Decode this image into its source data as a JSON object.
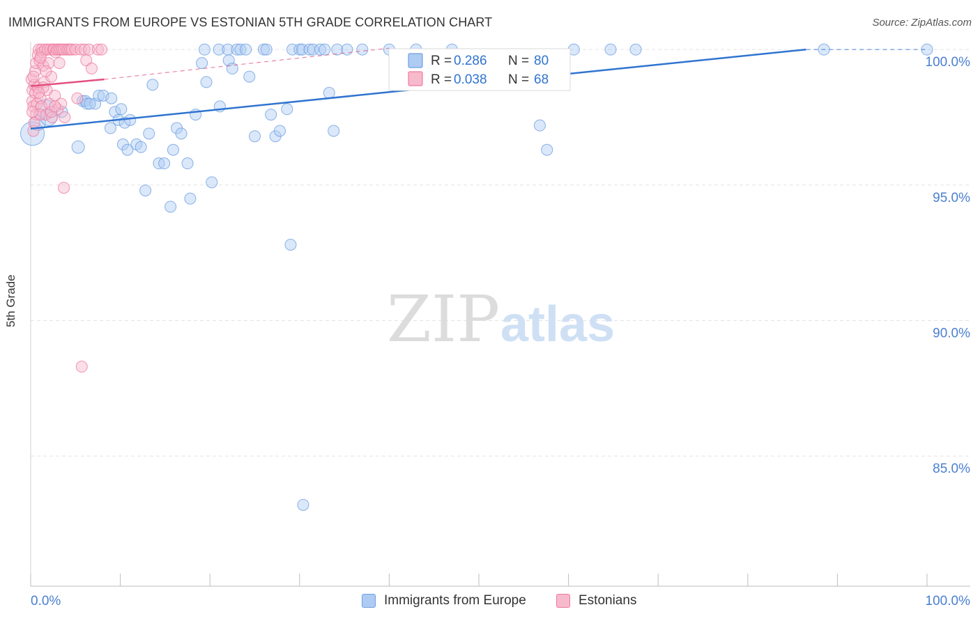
{
  "header": {
    "title": "IMMIGRANTS FROM EUROPE VS ESTONIAN 5TH GRADE CORRELATION CHART",
    "source": "Source: ZipAtlas.com"
  },
  "watermark": {
    "zip": "ZIP",
    "atlas": "atlas"
  },
  "legend_box": {
    "rows": [
      {
        "r_label": "R = ",
        "r_value": "0.286",
        "n_label": "N = ",
        "n_value": "80"
      },
      {
        "r_label": "R = ",
        "r_value": "0.038",
        "n_label": "N = ",
        "n_value": "68"
      }
    ]
  },
  "colors": {
    "blue": "#6f9fe0",
    "blue_fill": "#aecbf3",
    "blue_line": "#2f74d0",
    "pink": "#ee7aa0",
    "pink_fill": "#f7b9cc",
    "pink_line": "#e24f7e",
    "axis_text": "#4a7fd1",
    "grid": "#e3e3e3"
  },
  "chart_data": {
    "type": "scatter",
    "title": "IMMIGRANTS FROM EUROPE VS ESTONIAN 5TH GRADE CORRELATION CHART",
    "xlabel": "",
    "ylabel": "5th Grade",
    "xlim": [
      0,
      100
    ],
    "ylim": [
      80.2,
      100.8
    ],
    "x_tick_labels": [
      "0.0%",
      "100.0%"
    ],
    "y_ticks": [
      85.0,
      90.0,
      95.0,
      100.0
    ],
    "y_tick_labels": [
      "85.0%",
      "90.0%",
      "95.0%",
      "100.0%"
    ],
    "legend": "bottom",
    "grid": true,
    "series": [
      {
        "name": "Immigrants from Europe",
        "color": "#6f9fe0",
        "R": 0.286,
        "N": 80,
        "trend": {
          "x": [
            0,
            86.5
          ],
          "y": [
            97.08,
            100.0
          ],
          "dashed_x": [
            86.5,
            100
          ],
          "dashed_y": [
            100.0,
            100.0
          ]
        },
        "points": [
          [
            0.2,
            96.9,
            34
          ],
          [
            0.8,
            97.3,
            22
          ],
          [
            1.6,
            97.8,
            28
          ],
          [
            2.0,
            97.5,
            24
          ],
          [
            3.5,
            97.7,
            16
          ],
          [
            5.3,
            96.4,
            18
          ],
          [
            5.8,
            98.1,
            16
          ],
          [
            6.1,
            98.1,
            16
          ],
          [
            6.3,
            98.0,
            16
          ],
          [
            7.2,
            98.0,
            16
          ],
          [
            6.6,
            98.0,
            16
          ],
          [
            7.6,
            98.3,
            16
          ],
          [
            8.1,
            98.3,
            16
          ],
          [
            9.0,
            98.2,
            16
          ],
          [
            9.4,
            97.7,
            16
          ],
          [
            8.9,
            97.1,
            16
          ],
          [
            9.8,
            97.4,
            16
          ],
          [
            10.1,
            97.8,
            16
          ],
          [
            10.5,
            97.3,
            16
          ],
          [
            10.3,
            96.5,
            16
          ],
          [
            10.8,
            96.3,
            16
          ],
          [
            11.1,
            97.4,
            16
          ],
          [
            11.8,
            96.5,
            16
          ],
          [
            12.3,
            96.4,
            16
          ],
          [
            12.8,
            94.8,
            16
          ],
          [
            13.2,
            96.9,
            16
          ],
          [
            13.6,
            98.7,
            16
          ],
          [
            14.3,
            95.8,
            16
          ],
          [
            14.9,
            95.8,
            16
          ],
          [
            15.6,
            94.2,
            16
          ],
          [
            15.9,
            96.3,
            16
          ],
          [
            16.3,
            97.1,
            16
          ],
          [
            16.8,
            96.9,
            16
          ],
          [
            17.5,
            95.8,
            16
          ],
          [
            17.8,
            94.5,
            16
          ],
          [
            18.4,
            97.6,
            16
          ],
          [
            19.1,
            99.5,
            16
          ],
          [
            19.4,
            100.0,
            16
          ],
          [
            19.6,
            98.8,
            16
          ],
          [
            20.2,
            95.1,
            16
          ],
          [
            21.0,
            100.0,
            16
          ],
          [
            21.1,
            97.9,
            16
          ],
          [
            22.0,
            100.0,
            16
          ],
          [
            22.1,
            99.6,
            16
          ],
          [
            22.5,
            99.3,
            16
          ],
          [
            23.0,
            100.0,
            16
          ],
          [
            23.4,
            100.0,
            16
          ],
          [
            24.0,
            100.0,
            16
          ],
          [
            24.4,
            99.0,
            16
          ],
          [
            25.0,
            96.8,
            16
          ],
          [
            26.0,
            100.0,
            16
          ],
          [
            26.3,
            100.0,
            16
          ],
          [
            26.8,
            97.6,
            16
          ],
          [
            27.3,
            96.8,
            16
          ],
          [
            27.8,
            97.0,
            16
          ],
          [
            28.6,
            97.8,
            16
          ],
          [
            29.0,
            92.8,
            16
          ],
          [
            29.2,
            100.0,
            16
          ],
          [
            30.0,
            100.0,
            16
          ],
          [
            30.3,
            100.0,
            16
          ],
          [
            31.1,
            100.0,
            16
          ],
          [
            31.5,
            100.0,
            16
          ],
          [
            32.3,
            100.0,
            16
          ],
          [
            32.8,
            100.0,
            16
          ],
          [
            33.3,
            98.4,
            16
          ],
          [
            33.8,
            97.0,
            16
          ],
          [
            34.2,
            100.0,
            16
          ],
          [
            35.3,
            100.0,
            16
          ],
          [
            37.0,
            100.0,
            16
          ],
          [
            40.0,
            100.0,
            16
          ],
          [
            43.0,
            100.0,
            16
          ],
          [
            47.0,
            100.0,
            16
          ],
          [
            30.4,
            83.2,
            16
          ],
          [
            56.8,
            97.2,
            16
          ],
          [
            57.6,
            96.3,
            16
          ],
          [
            60.6,
            100.0,
            16
          ],
          [
            64.7,
            100.0,
            16
          ],
          [
            67.5,
            100.0,
            16
          ],
          [
            88.5,
            100.0,
            16
          ],
          [
            100.0,
            100.0,
            16
          ]
        ]
      },
      {
        "name": "Estonians",
        "color": "#ee7aa0",
        "R": 0.038,
        "N": 68,
        "trend": {
          "x": [
            0,
            8.2
          ],
          "y": [
            98.65,
            98.9
          ],
          "dashed_x": [
            8.2,
            40
          ],
          "dashed_y": [
            98.9,
            100.05
          ]
        },
        "points": [
          [
            0.1,
            98.9,
            16
          ],
          [
            0.2,
            98.5,
            16
          ],
          [
            0.2,
            98.1,
            16
          ],
          [
            0.3,
            97.9,
            16
          ],
          [
            0.3,
            97.0,
            16
          ],
          [
            0.4,
            98.7,
            16
          ],
          [
            0.5,
            99.2,
            16
          ],
          [
            0.5,
            98.4,
            16
          ],
          [
            0.6,
            97.6,
            16
          ],
          [
            0.6,
            99.5,
            16
          ],
          [
            0.7,
            98.0,
            16
          ],
          [
            0.8,
            99.8,
            16
          ],
          [
            0.8,
            98.6,
            16
          ],
          [
            0.9,
            100.0,
            16
          ],
          [
            1.0,
            99.6,
            16
          ],
          [
            1.1,
            98.2,
            16
          ],
          [
            1.2,
            97.9,
            16
          ],
          [
            1.2,
            100.0,
            16
          ],
          [
            1.3,
            99.9,
            16
          ],
          [
            1.4,
            99.4,
            16
          ],
          [
            1.5,
            98.8,
            16
          ],
          [
            1.6,
            100.0,
            16
          ],
          [
            1.7,
            97.6,
            16
          ],
          [
            1.8,
            98.5,
            16
          ],
          [
            1.9,
            100.0,
            16
          ],
          [
            2.0,
            99.5,
            16
          ],
          [
            2.1,
            98.0,
            16
          ],
          [
            2.2,
            100.0,
            16
          ],
          [
            2.3,
            99.0,
            16
          ],
          [
            2.4,
            97.5,
            16
          ],
          [
            2.5,
            100.0,
            16
          ],
          [
            2.6,
            100.0,
            16
          ],
          [
            2.7,
            98.3,
            16
          ],
          [
            2.8,
            99.9,
            16
          ],
          [
            2.9,
            100.0,
            16
          ],
          [
            3.0,
            97.8,
            16
          ],
          [
            3.1,
            100.0,
            16
          ],
          [
            3.2,
            99.5,
            16
          ],
          [
            3.3,
            100.0,
            16
          ],
          [
            3.4,
            98.0,
            16
          ],
          [
            3.5,
            100.0,
            16
          ],
          [
            3.7,
            100.0,
            16
          ],
          [
            3.8,
            97.5,
            16
          ],
          [
            4.0,
            100.0,
            16
          ],
          [
            4.2,
            100.0,
            16
          ],
          [
            4.4,
            100.0,
            16
          ],
          [
            4.6,
            100.0,
            16
          ],
          [
            5.0,
            100.0,
            16
          ],
          [
            5.2,
            98.2,
            16
          ],
          [
            5.6,
            100.0,
            16
          ],
          [
            6.0,
            100.0,
            16
          ],
          [
            6.2,
            99.6,
            16
          ],
          [
            6.5,
            100.0,
            16
          ],
          [
            6.8,
            99.3,
            16
          ],
          [
            7.5,
            100.0,
            16
          ],
          [
            7.9,
            100.0,
            16
          ],
          [
            3.7,
            94.9,
            16
          ],
          [
            5.7,
            88.3,
            16
          ],
          [
            0.4,
            97.3,
            16
          ],
          [
            1.0,
            97.6,
            16
          ],
          [
            1.4,
            98.6,
            16
          ],
          [
            1.7,
            99.2,
            16
          ],
          [
            2.3,
            97.7,
            16
          ],
          [
            0.9,
            98.4,
            16
          ],
          [
            0.2,
            97.7,
            16
          ],
          [
            0.3,
            99.0,
            16
          ],
          [
            2.7,
            97.9,
            16
          ],
          [
            1.1,
            99.7,
            16
          ]
        ]
      }
    ]
  }
}
